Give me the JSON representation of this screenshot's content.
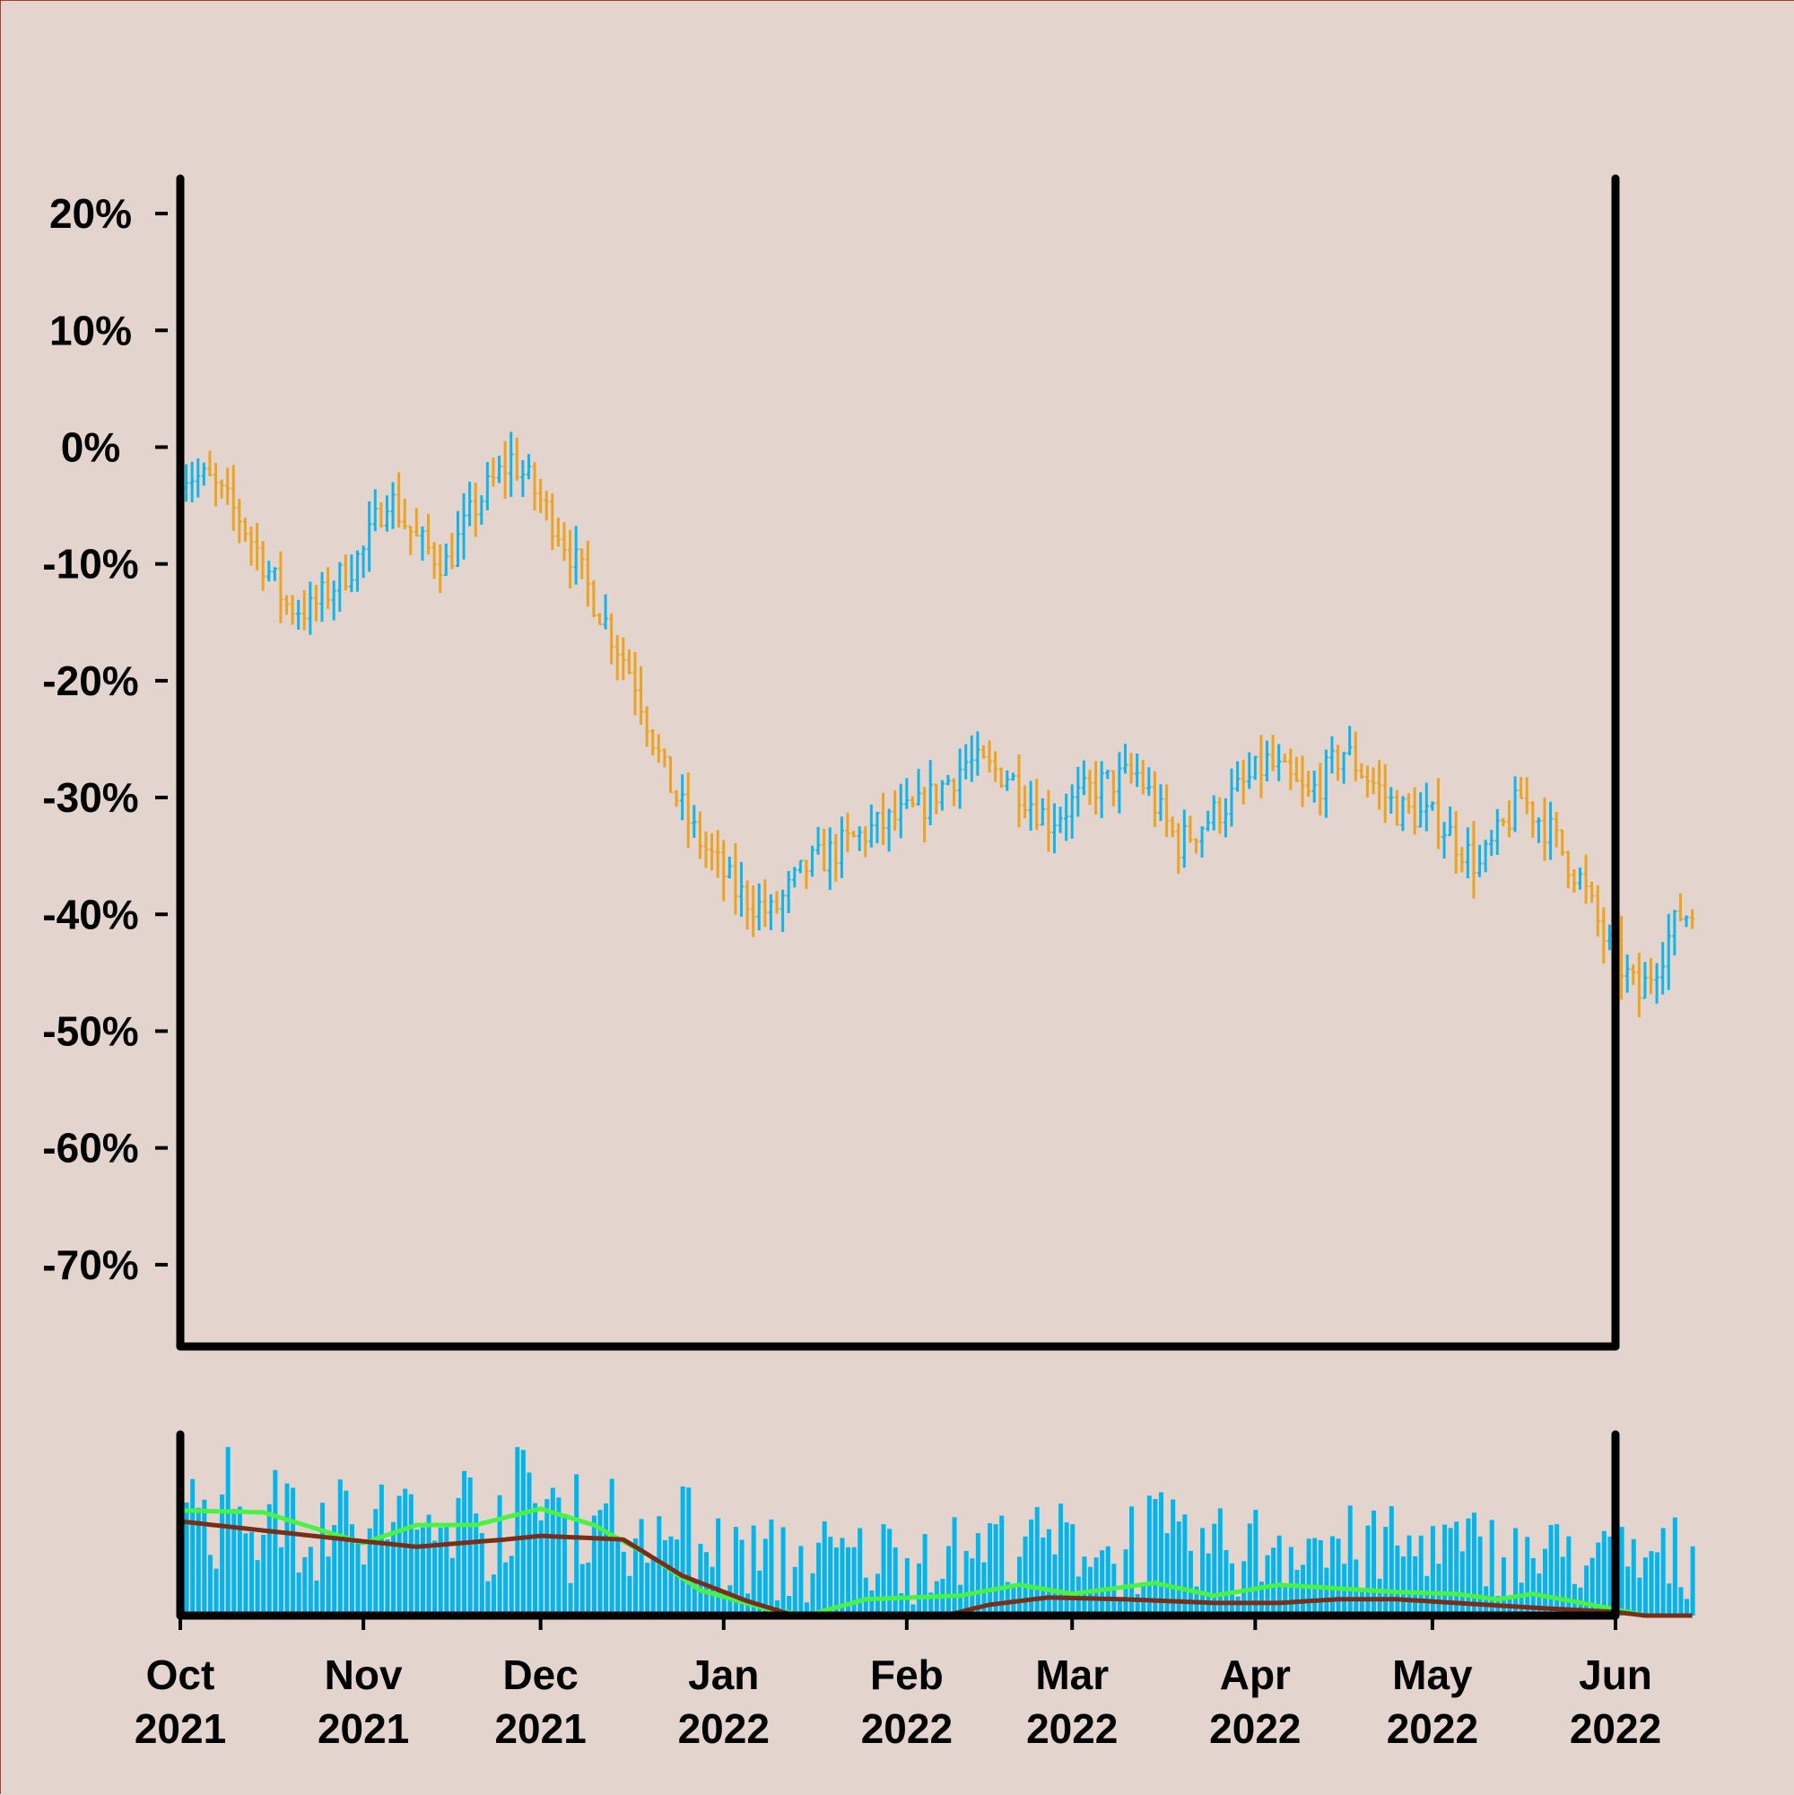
{
  "chart_data": {
    "type": "ohlc",
    "colors": {
      "background": "#e4d4ce",
      "up": "#12b5e8",
      "down": "#eba323",
      "volume": "#00b6ec",
      "ma_fast": "#49f244",
      "ma_slow": "#7a2e18",
      "axis": "#000000"
    },
    "price_panel": {
      "ylim": [
        -77,
        23
      ],
      "y_ticks": [
        20,
        10,
        0,
        -10,
        -20,
        -30,
        -40,
        -50,
        -60,
        -70
      ],
      "y_tick_labels": [
        "20%",
        "10%",
        "0%",
        "-10%",
        "-20%",
        "-30%",
        "-40%",
        "-50%",
        "-60%",
        "-70%"
      ],
      "series_key_points": [
        [
          "2021-10-01",
          -2
        ],
        [
          "2021-10-06",
          -3
        ],
        [
          "2021-10-11",
          -6
        ],
        [
          "2021-10-19",
          -13.5
        ],
        [
          "2021-10-23",
          -14
        ],
        [
          "2021-11-01",
          -9
        ],
        [
          "2021-11-05",
          -4
        ],
        [
          "2021-11-10",
          -8
        ],
        [
          "2021-11-15",
          -10
        ],
        [
          "2021-11-20",
          -5
        ],
        [
          "2021-11-26",
          -1
        ],
        [
          "2021-11-29",
          -3
        ],
        [
          "2021-12-04",
          -7
        ],
        [
          "2021-12-10",
          -13
        ],
        [
          "2021-12-17",
          -20
        ],
        [
          "2021-12-22",
          -28
        ],
        [
          "2021-12-27",
          -33
        ],
        [
          "2022-01-03",
          -38
        ],
        [
          "2022-01-09",
          -40
        ],
        [
          "2022-01-15",
          -36
        ],
        [
          "2022-01-25",
          -33
        ],
        [
          "2022-02-03",
          -31
        ],
        [
          "2022-02-11",
          -27
        ],
        [
          "2022-02-18",
          -28
        ],
        [
          "2022-02-25",
          -32
        ],
        [
          "2022-03-05",
          -29
        ],
        [
          "2022-03-12",
          -28
        ],
        [
          "2022-03-19",
          -34
        ],
        [
          "2022-03-26",
          -31
        ],
        [
          "2022-04-03",
          -27
        ],
        [
          "2022-04-10",
          -30
        ],
        [
          "2022-04-16",
          -26
        ],
        [
          "2022-04-25",
          -31
        ],
        [
          "2022-05-02",
          -32
        ],
        [
          "2022-05-09",
          -36
        ],
        [
          "2022-05-16",
          -30
        ],
        [
          "2022-05-21",
          -33
        ],
        [
          "2022-05-26",
          -37
        ],
        [
          "2022-05-30",
          -42
        ],
        [
          "2022-06-05",
          -47
        ],
        [
          "2022-06-08",
          -44
        ],
        [
          "2022-06-12",
          -40
        ],
        [
          "2022-06-14",
          -40
        ]
      ]
    },
    "volume_panel": {
      "ma_fast_points": [
        [
          "2021-10-01",
          0.58
        ],
        [
          "2021-10-15",
          0.57
        ],
        [
          "2021-11-01",
          0.4
        ],
        [
          "2021-11-10",
          0.5
        ],
        [
          "2021-11-20",
          0.5
        ],
        [
          "2021-12-01",
          0.59
        ],
        [
          "2021-12-10",
          0.5
        ],
        [
          "2021-12-20",
          0.32
        ],
        [
          "2021-12-28",
          0.14
        ],
        [
          "2022-01-08",
          0.04
        ],
        [
          "2022-01-15",
          0.0
        ],
        [
          "2022-01-25",
          0.09
        ],
        [
          "2022-02-10",
          0.11
        ],
        [
          "2022-02-20",
          0.17
        ],
        [
          "2022-03-01",
          0.12
        ],
        [
          "2022-03-15",
          0.18
        ],
        [
          "2022-03-25",
          0.11
        ],
        [
          "2022-04-05",
          0.17
        ],
        [
          "2022-04-15",
          0.15
        ],
        [
          "2022-04-25",
          0.13
        ],
        [
          "2022-05-05",
          0.12
        ],
        [
          "2022-05-12",
          0.09
        ],
        [
          "2022-05-18",
          0.12
        ],
        [
          "2022-05-28",
          0.06
        ],
        [
          "2022-06-06",
          0.0
        ]
      ],
      "ma_slow_points": [
        [
          "2021-10-01",
          0.52
        ],
        [
          "2021-10-15",
          0.47
        ],
        [
          "2021-11-01",
          0.41
        ],
        [
          "2021-11-10",
          0.38
        ],
        [
          "2021-11-25",
          0.42
        ],
        [
          "2021-12-01",
          0.44
        ],
        [
          "2021-12-15",
          0.42
        ],
        [
          "2021-12-25",
          0.22
        ],
        [
          "2022-01-05",
          0.08
        ],
        [
          "2022-01-15",
          -0.02
        ],
        [
          "2022-01-25",
          -0.09
        ],
        [
          "2022-02-05",
          -0.02
        ],
        [
          "2022-02-15",
          0.06
        ],
        [
          "2022-02-25",
          0.1
        ],
        [
          "2022-03-10",
          0.09
        ],
        [
          "2022-03-25",
          0.07
        ],
        [
          "2022-04-05",
          0.07
        ],
        [
          "2022-04-15",
          0.09
        ],
        [
          "2022-04-25",
          0.09
        ],
        [
          "2022-05-05",
          0.07
        ],
        [
          "2022-05-20",
          0.04
        ],
        [
          "2022-06-01",
          0.02
        ],
        [
          "2022-06-06",
          0.0
        ]
      ]
    },
    "x_ticks": [
      {
        "date": "2021-10-01",
        "month": "Oct",
        "year": "2021"
      },
      {
        "date": "2021-11-01",
        "month": "Nov",
        "year": "2021"
      },
      {
        "date": "2021-12-01",
        "month": "Dec",
        "year": "2021"
      },
      {
        "date": "2022-01-01",
        "month": "Jan",
        "year": "2022"
      },
      {
        "date": "2022-02-01",
        "month": "Feb",
        "year": "2022"
      },
      {
        "date": "2022-03-01",
        "month": "Mar",
        "year": "2022"
      },
      {
        "date": "2022-04-01",
        "month": "Apr",
        "year": "2022"
      },
      {
        "date": "2022-05-01",
        "month": "May",
        "year": "2022"
      },
      {
        "date": "2022-06-01",
        "month": "Jun",
        "year": "2022"
      }
    ],
    "xlim": [
      "2021-10-01",
      "2022-06-01"
    ],
    "grid": false,
    "legend": "none"
  }
}
